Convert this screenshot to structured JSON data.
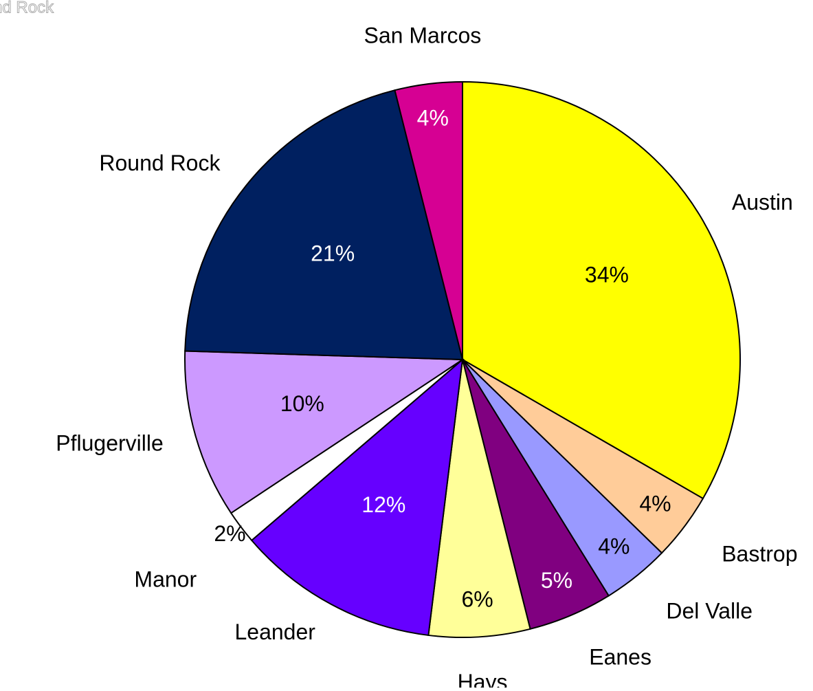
{
  "chart_data": {
    "type": "pie",
    "watermark": "nd Rock",
    "categories": [
      "Austin",
      "Bastrop",
      "Del Valle",
      "Eanes",
      "Hays",
      "Leander",
      "Manor",
      "Pflugerville",
      "Round Rock",
      "San Marcos"
    ],
    "values": [
      34,
      4,
      4,
      5,
      6,
      12,
      2,
      10,
      21,
      4
    ],
    "value_labels": [
      "34%",
      "4%",
      "4%",
      "5%",
      "6%",
      "12%",
      "2%",
      "10%",
      "21%",
      "4%"
    ],
    "colors": [
      "#ffff00",
      "#ffcc99",
      "#9999ff",
      "#800080",
      "#ffff99",
      "#6600ff",
      "#ffffff",
      "#cc99ff",
      "#002060",
      "#d60093"
    ]
  }
}
